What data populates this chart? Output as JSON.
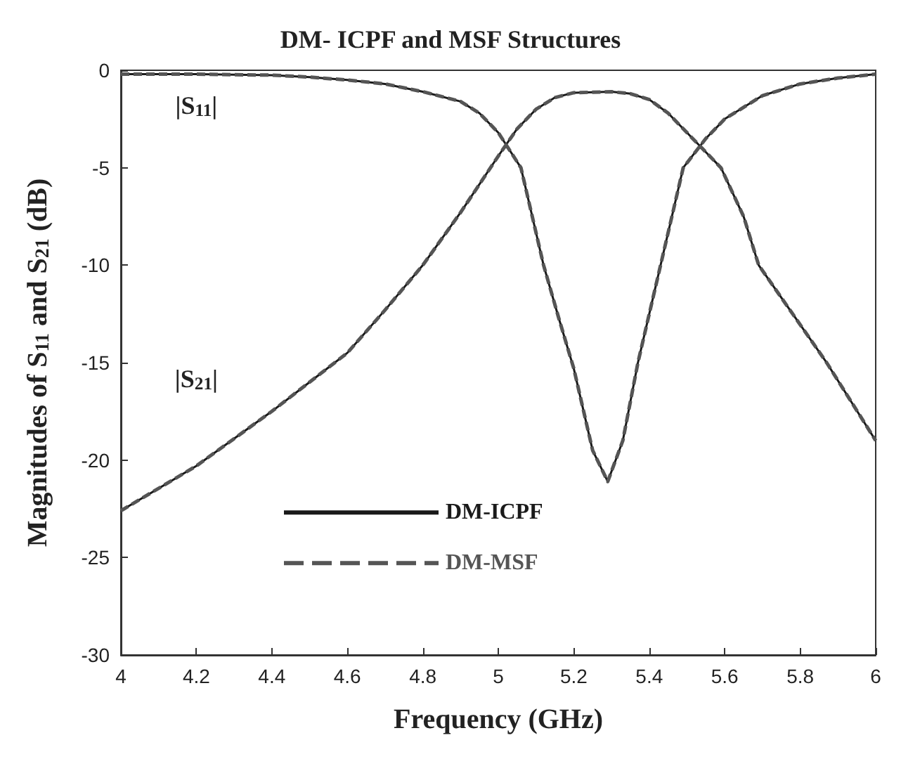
{
  "chart_data": {
    "type": "line",
    "title": "DM- ICPF and MSF Structures",
    "xlabel": "Frequency (GHz)",
    "ylabel": "Magnitudes of S$_{11}$ and S$_{21}$ (dB)",
    "xlim": [
      4,
      6
    ],
    "xticks": [
      4,
      4.2,
      4.4,
      4.6,
      4.8,
      5,
      5.2,
      5.4,
      5.6,
      5.8,
      6
    ],
    "ylim": [
      -30,
      0
    ],
    "yticks": [
      -30,
      -25,
      -20,
      -15,
      -10,
      -5,
      0
    ],
    "grid": false,
    "legend": "bottom",
    "marker": "none",
    "annotations": [
      {
        "text": "|S$_{11}$|",
        "x": 4.2,
        "y": -0.2
      },
      {
        "text": "|S$_{21}$|",
        "x": 4.2,
        "y": -20.3
      }
    ],
    "series": [
      {
        "name": "DM-ICPF",
        "color": "#1a1a1a",
        "line_style": "solid",
        "x": [
          4,
          4.2,
          4.4,
          4.5,
          4.6,
          4.7,
          4.8,
          4.9,
          4.95,
          5,
          5.06,
          5.12,
          5.16,
          5.2,
          5.25,
          5.29,
          5.33,
          5.37,
          5.43,
          5.49,
          5.55,
          5.6,
          5.7,
          5.8,
          5.9,
          6,
          null,
          4,
          4.2,
          4.4,
          4.5,
          4.6,
          4.7,
          4.8,
          4.9,
          5,
          5.05,
          5.1,
          5.15,
          5.2,
          5.3,
          5.35,
          5.4,
          5.45,
          5.5,
          5.55,
          5.59,
          5.65,
          5.69,
          5.78,
          5.87,
          6
        ],
        "values": [
          -0.2,
          -0.2,
          -0.25,
          -0.35,
          -0.5,
          -0.7,
          -1.1,
          -1.6,
          -2.2,
          -3.2,
          -5,
          -10,
          -12.7,
          -15.3,
          -19.5,
          -21.1,
          -19,
          -15,
          -10,
          -5,
          -3.5,
          -2.5,
          -1.3,
          -0.7,
          -0.4,
          -0.2,
          null,
          -22.6,
          -20.3,
          -17.5,
          -16,
          -14.5,
          -12.3,
          -10,
          -7.3,
          -4.4,
          -3,
          -2,
          -1.4,
          -1.15,
          -1.1,
          -1.2,
          -1.5,
          -2.2,
          -3.2,
          -4.2,
          -5,
          -7.5,
          -10,
          -12.5,
          -15,
          -19
        ]
      },
      {
        "name": "DM-MSF",
        "color": "#555555",
        "line_style": "dashed",
        "x": [
          4,
          4.2,
          4.4,
          4.5,
          4.6,
          4.7,
          4.8,
          4.9,
          4.95,
          5,
          5.06,
          5.12,
          5.16,
          5.2,
          5.25,
          5.29,
          5.33,
          5.37,
          5.43,
          5.49,
          5.55,
          5.6,
          5.7,
          5.8,
          5.9,
          6,
          null,
          4,
          4.2,
          4.4,
          4.5,
          4.6,
          4.7,
          4.8,
          4.9,
          5,
          5.05,
          5.1,
          5.15,
          5.2,
          5.3,
          5.35,
          5.4,
          5.45,
          5.5,
          5.55,
          5.59,
          5.65,
          5.69,
          5.78,
          5.87,
          6
        ],
        "values": [
          -0.2,
          -0.2,
          -0.25,
          -0.35,
          -0.5,
          -0.7,
          -1.1,
          -1.6,
          -2.2,
          -3.2,
          -5,
          -10,
          -12.7,
          -15.3,
          -19.5,
          -21.1,
          -19,
          -15,
          -10,
          -5,
          -3.5,
          -2.5,
          -1.3,
          -0.7,
          -0.4,
          -0.2,
          null,
          -22.6,
          -20.3,
          -17.5,
          -16,
          -14.5,
          -12.3,
          -10,
          -7.3,
          -4.4,
          -3,
          -2,
          -1.4,
          -1.15,
          -1.1,
          -1.2,
          -1.5,
          -2.2,
          -3.2,
          -4.2,
          -5,
          -7.5,
          -10,
          -12.5,
          -15,
          -19
        ]
      }
    ]
  }
}
